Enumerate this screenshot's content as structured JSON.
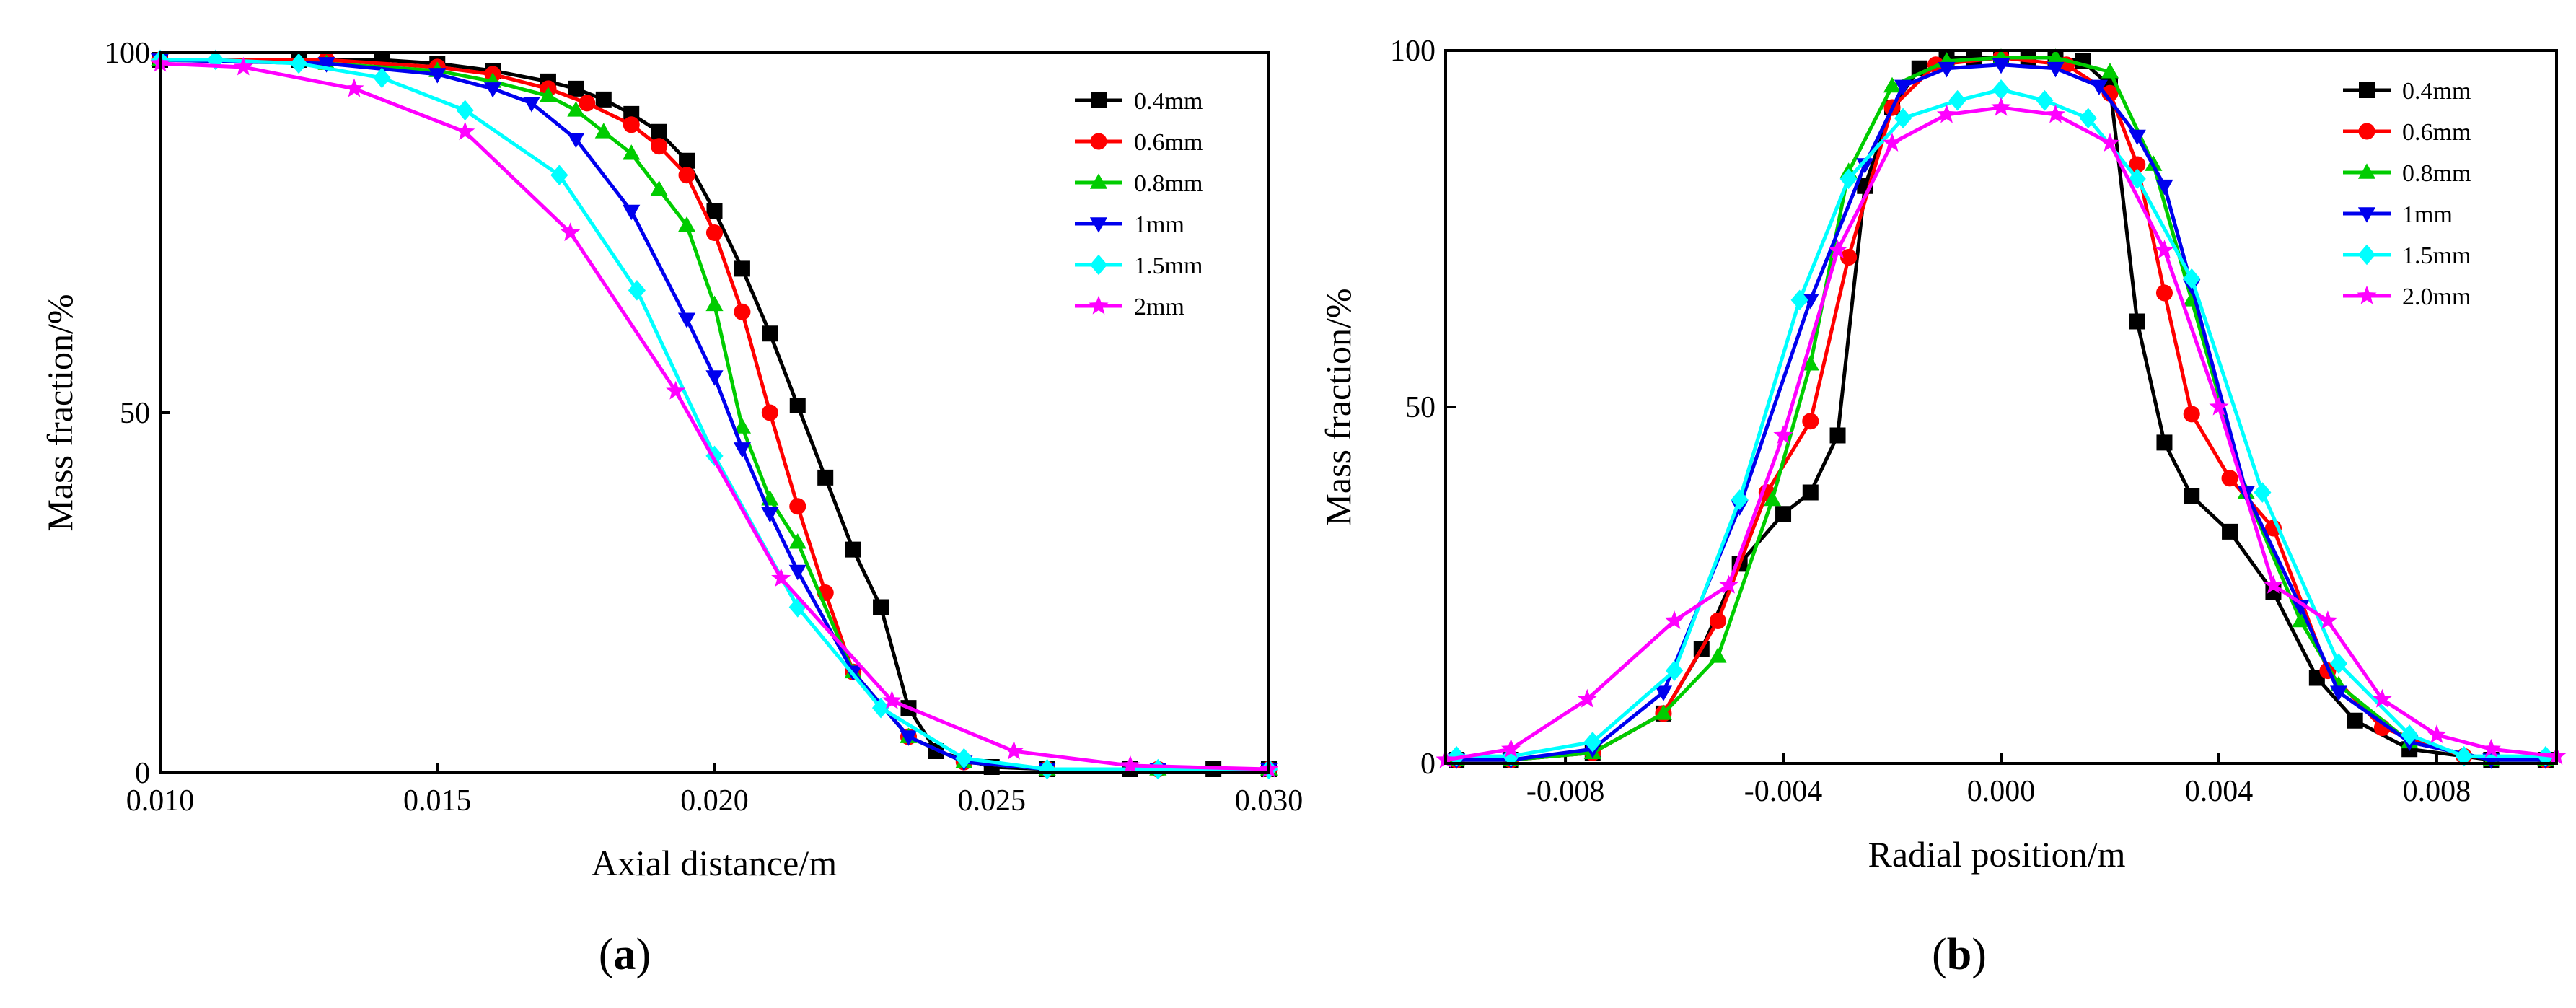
{
  "chart_data": [
    {
      "type": "line",
      "panel_label": "a",
      "title": "",
      "xlabel": "Axial distance/m",
      "ylabel": "Mass fraction/%",
      "xlim": [
        0.01,
        0.03
      ],
      "ylim": [
        0,
        100
      ],
      "xticks": [
        {
          "value": 0.01,
          "label": "0.010"
        },
        {
          "value": 0.015,
          "label": "0.015"
        },
        {
          "value": 0.02,
          "label": "0.020"
        },
        {
          "value": 0.025,
          "label": "0.025"
        },
        {
          "value": 0.03,
          "label": "0.030"
        }
      ],
      "yticks": [
        {
          "value": 0,
          "label": "0"
        },
        {
          "value": 50,
          "label": "50"
        },
        {
          "value": 100,
          "label": "100"
        }
      ],
      "legend_position": "top-right",
      "series": [
        {
          "name": "0.4mm",
          "color": "#000000",
          "marker": "square",
          "x": [
            0.01,
            0.0125,
            0.014,
            0.015,
            0.016,
            0.017,
            0.0175,
            0.018,
            0.0185,
            0.019,
            0.0195,
            0.02,
            0.0205,
            0.021,
            0.0215,
            0.022,
            0.0225,
            0.023,
            0.0235,
            0.024,
            0.025,
            0.026,
            0.0275,
            0.029,
            0.03
          ],
          "y": [
            99,
            99,
            99,
            98.5,
            97.5,
            96,
            95,
            93.5,
            91.5,
            89,
            85,
            78,
            70,
            61,
            51,
            41,
            31,
            23,
            9,
            3,
            0.8,
            0.5,
            0.5,
            0.5,
            0.5
          ]
        },
        {
          "name": "0.6mm",
          "color": "#ff0000",
          "marker": "circle",
          "x": [
            0.01,
            0.013,
            0.015,
            0.016,
            0.017,
            0.0177,
            0.0185,
            0.019,
            0.0195,
            0.02,
            0.0205,
            0.021,
            0.0215,
            0.022,
            0.0225,
            0.0235,
            0.0245,
            0.026,
            0.028,
            0.03
          ],
          "y": [
            99,
            99,
            98,
            97,
            95,
            93,
            90,
            87,
            83,
            75,
            64,
            50,
            37,
            25,
            14,
            5,
            1.5,
            0.5,
            0.5,
            0.5
          ]
        },
        {
          "name": "0.8mm",
          "color": "#00cc00",
          "marker": "triangle-up",
          "x": [
            0.01,
            0.013,
            0.015,
            0.016,
            0.017,
            0.0175,
            0.018,
            0.0185,
            0.019,
            0.0195,
            0.02,
            0.0205,
            0.021,
            0.0215,
            0.0225,
            0.0235,
            0.0245,
            0.026,
            0.028,
            0.03
          ],
          "y": [
            99,
            98.5,
            97.5,
            96,
            94,
            92,
            89,
            86,
            81,
            76,
            65,
            48,
            38,
            32,
            14,
            5,
            1.5,
            0.5,
            0.5,
            0.5
          ]
        },
        {
          "name": "1mm",
          "color": "#0000ee",
          "marker": "triangle-down",
          "x": [
            0.01,
            0.013,
            0.015,
            0.016,
            0.0167,
            0.0175,
            0.0185,
            0.0195,
            0.02,
            0.0205,
            0.021,
            0.0215,
            0.0225,
            0.0235,
            0.0245,
            0.026,
            0.028,
            0.03
          ],
          "y": [
            99,
            98.5,
            97,
            95,
            93,
            88,
            78,
            63,
            55,
            45,
            36,
            28,
            14,
            5,
            1.5,
            0.5,
            0.5,
            0.5
          ]
        },
        {
          "name": "1.5mm",
          "color": "#00ffff",
          "marker": "diamond",
          "x": [
            0.01,
            0.011,
            0.0125,
            0.014,
            0.0155,
            0.0172,
            0.0186,
            0.02,
            0.0215,
            0.023,
            0.0245,
            0.026,
            0.028,
            0.03
          ],
          "y": [
            99,
            99,
            98.5,
            96.5,
            92,
            83,
            67,
            44,
            23,
            9,
            2,
            0.5,
            0.5,
            0.5
          ]
        },
        {
          "name": "2mm",
          "color": "#ff00ff",
          "marker": "star",
          "x": [
            0.01,
            0.0115,
            0.0135,
            0.0155,
            0.0174,
            0.0193,
            0.0212,
            0.0232,
            0.0254,
            0.0275,
            0.03
          ],
          "y": [
            98.5,
            98,
            95,
            89,
            75,
            53,
            27,
            10,
            3,
            1,
            0.5
          ]
        }
      ]
    },
    {
      "type": "line",
      "panel_label": "b",
      "title": "",
      "xlabel": "Radial position/m",
      "ylabel": "Mass fraction/%",
      "xlim": [
        -0.0102,
        0.0102
      ],
      "ylim": [
        0,
        100
      ],
      "xticks": [
        {
          "value": -0.008,
          "label": "-0.008"
        },
        {
          "value": -0.004,
          "label": "-0.004"
        },
        {
          "value": 0.0,
          "label": "0.000"
        },
        {
          "value": 0.004,
          "label": "0.004"
        },
        {
          "value": 0.008,
          "label": "0.008"
        }
      ],
      "yticks": [
        {
          "value": 0,
          "label": "0"
        },
        {
          "value": 50,
          "label": "50"
        },
        {
          "value": 100,
          "label": "100"
        }
      ],
      "legend_position": "top-right",
      "series": [
        {
          "name": "0.4mm",
          "color": "#000000",
          "marker": "square",
          "x": [
            -0.01,
            -0.009,
            -0.0075,
            -0.0062,
            -0.0055,
            -0.0048,
            -0.004,
            -0.0035,
            -0.003,
            -0.0025,
            -0.002,
            -0.0015,
            -0.001,
            -0.0005,
            0.0,
            0.0005,
            0.001,
            0.0015,
            0.002,
            0.0025,
            0.003,
            0.0035,
            0.0042,
            0.005,
            0.0058,
            0.0065,
            0.0075,
            0.009,
            0.01
          ],
          "y": [
            0.5,
            0.5,
            1.5,
            7,
            16,
            28,
            35,
            38,
            46,
            81,
            92,
            97.5,
            99,
            99,
            99,
            99,
            99,
            98.5,
            95,
            62,
            45,
            37.5,
            32.5,
            24,
            12,
            6,
            2,
            0.5,
            0.5
          ]
        },
        {
          "name": "0.6mm",
          "color": "#ff0000",
          "marker": "circle",
          "x": [
            -0.01,
            -0.009,
            -0.0075,
            -0.0062,
            -0.0052,
            -0.0043,
            -0.0035,
            -0.0028,
            -0.002,
            -0.0012,
            0.0,
            0.0012,
            0.002,
            0.0025,
            0.003,
            0.0035,
            0.0042,
            0.005,
            0.006,
            0.007,
            0.0085,
            0.01
          ],
          "y": [
            0.5,
            0.5,
            1.5,
            7,
            20,
            38,
            48,
            71,
            92,
            98,
            99,
            98,
            94,
            84,
            66,
            49,
            40,
            33,
            13,
            5,
            1,
            0.5
          ]
        },
        {
          "name": "0.8mm",
          "color": "#00cc00",
          "marker": "triangle-up",
          "x": [
            -0.01,
            -0.009,
            -0.0075,
            -0.0062,
            -0.0052,
            -0.0042,
            -0.0035,
            -0.0028,
            -0.002,
            -0.001,
            0.0,
            0.001,
            0.002,
            0.0028,
            0.0035,
            0.0045,
            0.0055,
            0.0062,
            0.0075,
            0.009,
            0.01
          ],
          "y": [
            0.5,
            0.5,
            1.5,
            7,
            15,
            37,
            56,
            83,
            95,
            98.5,
            99,
            99,
            97,
            84,
            65,
            38,
            20,
            11,
            3,
            0.5,
            0.5
          ]
        },
        {
          "name": "1mm",
          "color": "#0000ee",
          "marker": "triangle-down",
          "x": [
            -0.01,
            -0.009,
            -0.0075,
            -0.0062,
            -0.0048,
            -0.0035,
            -0.0025,
            -0.0018,
            -0.001,
            0.0,
            0.001,
            0.0018,
            0.0025,
            0.003,
            0.0035,
            0.0045,
            0.0055,
            0.0062,
            0.0075,
            0.009,
            0.01
          ],
          "y": [
            0.5,
            0.5,
            2,
            10,
            36,
            65,
            84,
            95,
            97.5,
            98,
            97.5,
            95,
            88,
            81,
            67,
            38,
            22,
            10,
            3,
            0.5,
            0.5
          ]
        },
        {
          "name": "1.5mm",
          "color": "#00ffff",
          "marker": "diamond",
          "x": [
            -0.01,
            -0.009,
            -0.0075,
            -0.006,
            -0.0048,
            -0.0037,
            -0.0028,
            -0.0018,
            -0.0008,
            0.0,
            0.0008,
            0.0016,
            0.0025,
            0.0035,
            0.0048,
            0.0062,
            0.0075,
            0.0085,
            0.01
          ],
          "y": [
            1,
            1,
            3,
            13,
            37,
            65,
            82,
            90.5,
            93,
            94.5,
            93,
            90.5,
            82,
            68,
            38,
            14,
            4,
            1,
            1
          ]
        },
        {
          "name": "2.0mm",
          "color": "#ff00ff",
          "marker": "star",
          "x": [
            -0.0102,
            -0.009,
            -0.0076,
            -0.006,
            -0.005,
            -0.004,
            -0.003,
            -0.002,
            -0.001,
            0.0,
            0.001,
            0.002,
            0.003,
            0.004,
            0.005,
            0.006,
            0.007,
            0.008,
            0.009,
            0.0102
          ],
          "y": [
            0.5,
            2,
            9,
            20,
            25,
            46,
            72,
            87,
            91,
            92,
            91,
            87,
            72,
            50,
            25,
            20,
            9,
            4,
            2,
            1
          ]
        }
      ]
    }
  ]
}
